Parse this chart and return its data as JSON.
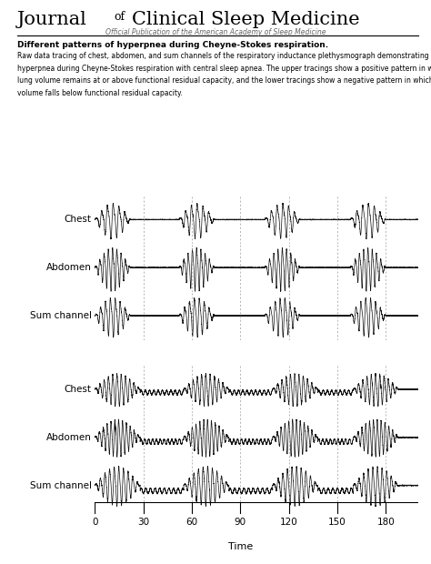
{
  "title_journal_serif": "Journal ",
  "title_journal_of": "of",
  "title_journal_rest": " Clinical Sleep Medicine",
  "title_subtitle": "Official Publication of the American Academy of Sleep Medicine",
  "figure_title": "Different patterns of hyperpnea during Cheyne-Stokes respiration.",
  "caption_line1": "Raw data tracing of chest, abdomen, and sum channels of the respiratory inductance plethysmograph demonstrating two patterns of",
  "caption_line2": "hyperpnea during Cheyne-Stokes respiration with central sleep apnea. The upper tracings show a positive pattern in which end-expiratory",
  "caption_line3": "lung volume remains at or above functional residual capacity, and the lower tracings show a negative pattern in which end-expiratory lung",
  "caption_line4": "volume falls below functional residual capacity.",
  "channel_labels_top": [
    "Chest",
    "Abdomen",
    "Sum channel"
  ],
  "channel_labels_bottom": [
    "Chest",
    "Abdomen",
    "Sum channel"
  ],
  "xticks": [
    0,
    30,
    60,
    90,
    120,
    150,
    180
  ],
  "vline_positions": [
    30,
    60,
    90,
    120,
    150,
    180
  ],
  "duration": 200,
  "sample_rate": 100,
  "line_color": "#111111",
  "vline_color": "#999999",
  "background_color": "#ffffff",
  "fig_width": 4.74,
  "fig_height": 6.2,
  "dpi": 100
}
